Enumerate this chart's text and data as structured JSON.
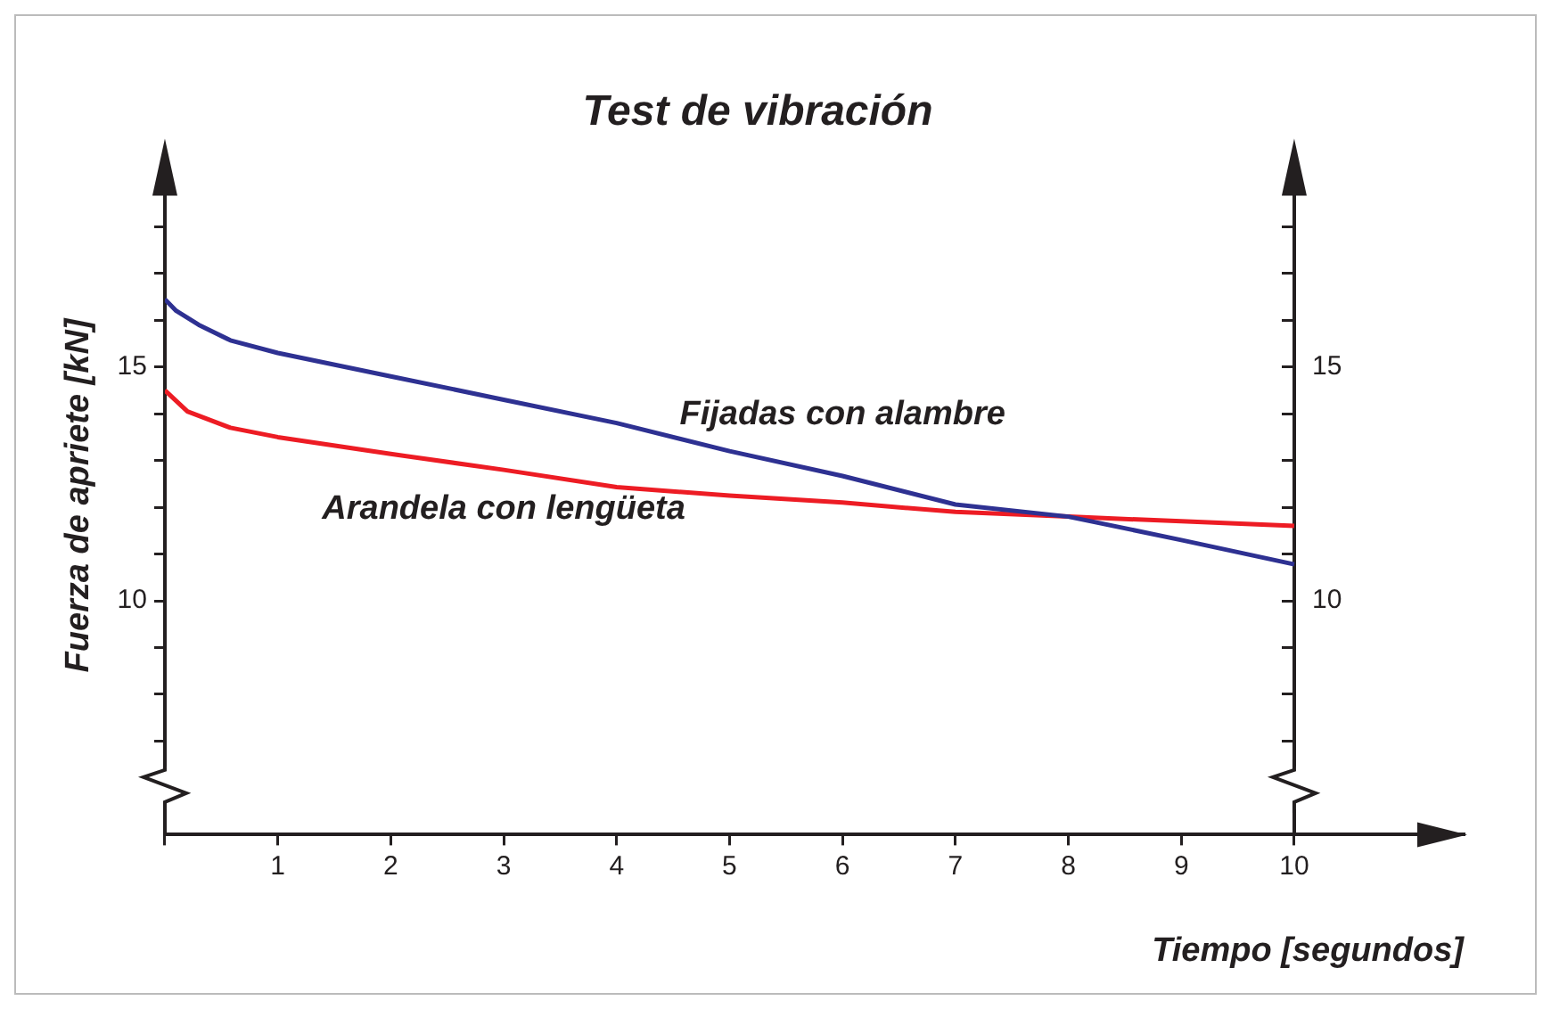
{
  "chart_data": {
    "type": "line",
    "title": "Test de vibración",
    "xlabel": "Tiempo [segundos]",
    "ylabel": "Fuerza de apriete [kN]",
    "xlim": [
      0,
      11.5
    ],
    "xticks": [
      {
        "value": 0,
        "label": null
      },
      1,
      2,
      3,
      4,
      5,
      6,
      7,
      8,
      9,
      10
    ],
    "ylim": [
      5,
      19.5
    ],
    "yticks": [
      {
        "value": 7,
        "label": null
      },
      {
        "value": 8,
        "label": null
      },
      {
        "value": 9,
        "label": null
      },
      10,
      {
        "value": 11,
        "label": null
      },
      {
        "value": 12,
        "label": null
      },
      {
        "value": 13,
        "label": null
      },
      {
        "value": 14,
        "label": null
      },
      15,
      {
        "value": 16,
        "label": null
      },
      {
        "value": 17,
        "label": null
      },
      {
        "value": 18,
        "label": null
      }
    ],
    "y2lim": [
      5,
      19.5
    ],
    "y2ticks": [
      {
        "value": 7,
        "label": null
      },
      {
        "value": 8,
        "label": null
      },
      {
        "value": 9,
        "label": null
      },
      10,
      {
        "value": 11,
        "label": null
      },
      {
        "value": 12,
        "label": null
      },
      {
        "value": 13,
        "label": null
      },
      {
        "value": 14,
        "label": null
      },
      15,
      {
        "value": 16,
        "label": null
      },
      {
        "value": 17,
        "label": null
      },
      {
        "value": 18,
        "label": null
      }
    ],
    "grid": false,
    "legend": false,
    "marker": "none",
    "line_style": "solid",
    "series": [
      {
        "name": "Fijadas con alambre",
        "color": "#2e3192",
        "x": [
          0,
          0.1,
          0.3,
          0.58,
          1,
          2,
          3,
          4,
          5,
          6,
          7,
          8,
          9,
          10
        ],
        "values": [
          16.45,
          16.2,
          15.9,
          15.57,
          15.3,
          14.8,
          14.3,
          13.8,
          13.2,
          12.67,
          12.06,
          11.8,
          11.3,
          10.78
        ]
      },
      {
        "name": "Arandela con lengüeta",
        "color": "#ed1c24",
        "x": [
          0,
          0.2,
          0.58,
          1,
          2,
          3,
          4,
          5,
          6,
          7,
          8,
          9,
          10
        ],
        "values": [
          14.5,
          14.05,
          13.7,
          13.5,
          13.14,
          12.8,
          12.43,
          12.25,
          12.1,
          11.9,
          11.8,
          11.7,
          11.6
        ]
      }
    ]
  }
}
